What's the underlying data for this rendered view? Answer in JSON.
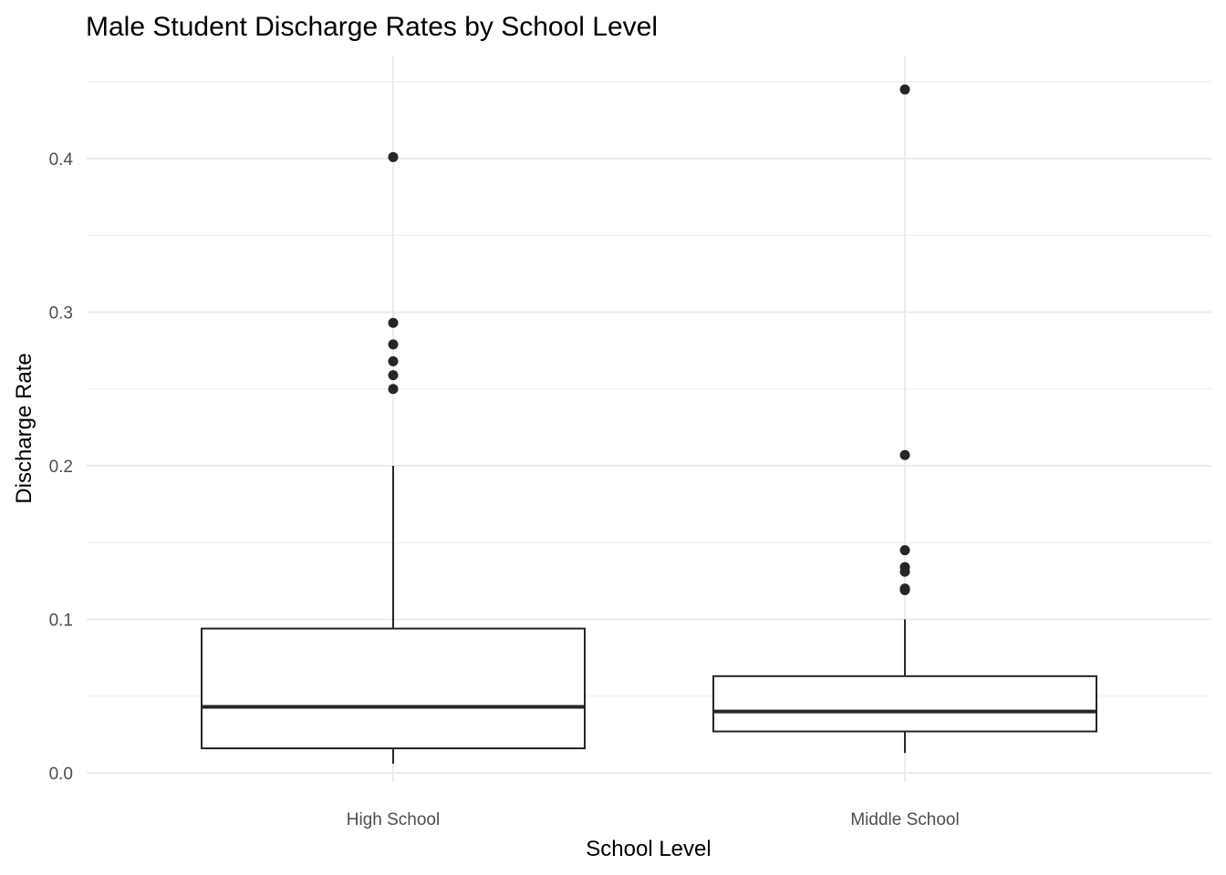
{
  "chart_data": {
    "type": "boxplot",
    "title": "Male Student Discharge Rates by School Level",
    "xlabel": "School Level",
    "ylabel": "Discharge Rate",
    "categories": [
      "High School",
      "Middle School"
    ],
    "ylim": [
      -0.006,
      0.455
    ],
    "yticks": [
      0.0,
      0.1,
      0.2,
      0.3,
      0.4
    ],
    "ytick_labels": [
      "0.0",
      "0.1",
      "0.2",
      "0.3",
      "0.4"
    ],
    "grid": true,
    "boxes": [
      {
        "category": "High School",
        "whisker_low": 0.006,
        "q1": 0.016,
        "median": 0.043,
        "q3": 0.094,
        "whisker_high": 0.2,
        "outliers": [
          0.401,
          0.293,
          0.279,
          0.268,
          0.259,
          0.25
        ]
      },
      {
        "category": "Middle School",
        "whisker_low": 0.013,
        "q1": 0.027,
        "median": 0.04,
        "q3": 0.063,
        "whisker_high": 0.1,
        "outliers": [
          0.445,
          0.207,
          0.145,
          0.134,
          0.131,
          0.12,
          0.119
        ]
      }
    ],
    "colors": {
      "box": "#262626",
      "fill": "#ffffff",
      "grid": "#ebebeb"
    }
  }
}
